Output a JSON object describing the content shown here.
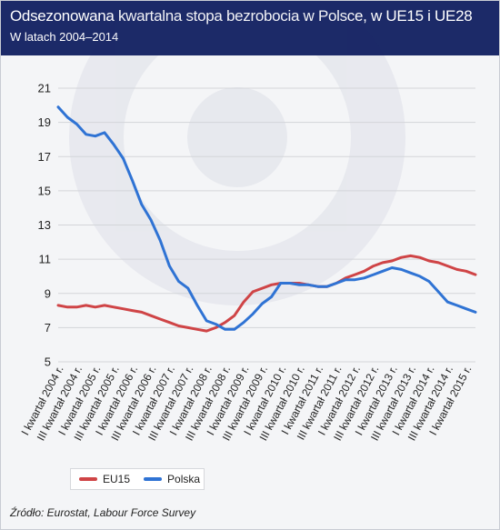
{
  "header": {
    "title": "Odsezonowana kwartalna stopa bezrobocia w Polsce, w UE15 i UE28",
    "subtitle": "W latach 2004–2014"
  },
  "source": "Źródło: Eurostat, Labour Force Survey",
  "chart_data": {
    "type": "line",
    "title": "Odsezonowana kwartalna stopa bezrobocia w Polsce, w UE15 i UE28",
    "subtitle": "W latach 2004–2014",
    "xlabel": "",
    "ylabel": "",
    "ylim": [
      5,
      21
    ],
    "yticks": [
      "5",
      "7",
      "9",
      "11",
      "13",
      "15",
      "17",
      "19",
      "21"
    ],
    "grid": "horizontal",
    "legend_position": "bottom-left",
    "x_tick_labels": [
      "I kwartał 2004 r.",
      "III kwartał 2004 r.",
      "I kwartał 2005 r.",
      "III kwartał 2005 r.",
      "I kwartał 2006 r.",
      "III kwartał 2006 r.",
      "I kwartał 2007 r.",
      "III kwartał 2007 r.",
      "I kwartał 2008 r.",
      "III kwartał 2008 r.",
      "I kwartał 2009 r.",
      "III kwartał 2009 r.",
      "I kwartał 2010 r.",
      "III kwartał 2010 r.",
      "I kwartał 2011 r.",
      "III kwartał 2011 r.",
      "I kwartał 2012 r.",
      "III kwartał 2012 r.",
      "I kwartał 2013 r.",
      "III kwartał 2013 r.",
      "I kwartał 2014 r.",
      "III kwartał 2014 r.",
      "I kwartał 2015 r."
    ],
    "series": [
      {
        "name": "EU15",
        "color": "#cf4446",
        "values": [
          8.3,
          8.2,
          8.2,
          8.3,
          8.2,
          8.3,
          8.2,
          8.1,
          8.0,
          7.9,
          7.7,
          7.5,
          7.3,
          7.1,
          7.0,
          6.9,
          6.8,
          7.0,
          7.3,
          7.7,
          8.5,
          9.1,
          9.3,
          9.5,
          9.6,
          9.6,
          9.6,
          9.5,
          9.4,
          9.4,
          9.6,
          9.9,
          10.1,
          10.3,
          10.6,
          10.8,
          10.9,
          11.1,
          11.2,
          11.1,
          10.9,
          10.8,
          10.6,
          10.4,
          10.3,
          10.1
        ]
      },
      {
        "name": "Polska",
        "color": "#2f73d4",
        "values": [
          19.9,
          19.3,
          18.9,
          18.3,
          18.2,
          18.4,
          17.7,
          16.9,
          15.6,
          14.2,
          13.3,
          12.1,
          10.6,
          9.7,
          9.3,
          8.3,
          7.4,
          7.2,
          6.9,
          6.9,
          7.3,
          7.8,
          8.4,
          8.8,
          9.6,
          9.6,
          9.5,
          9.5,
          9.4,
          9.4,
          9.6,
          9.8,
          9.8,
          9.9,
          10.1,
          10.3,
          10.5,
          10.4,
          10.2,
          10.0,
          9.7,
          9.1,
          8.5,
          8.3,
          8.1,
          7.9
        ]
      }
    ]
  }
}
